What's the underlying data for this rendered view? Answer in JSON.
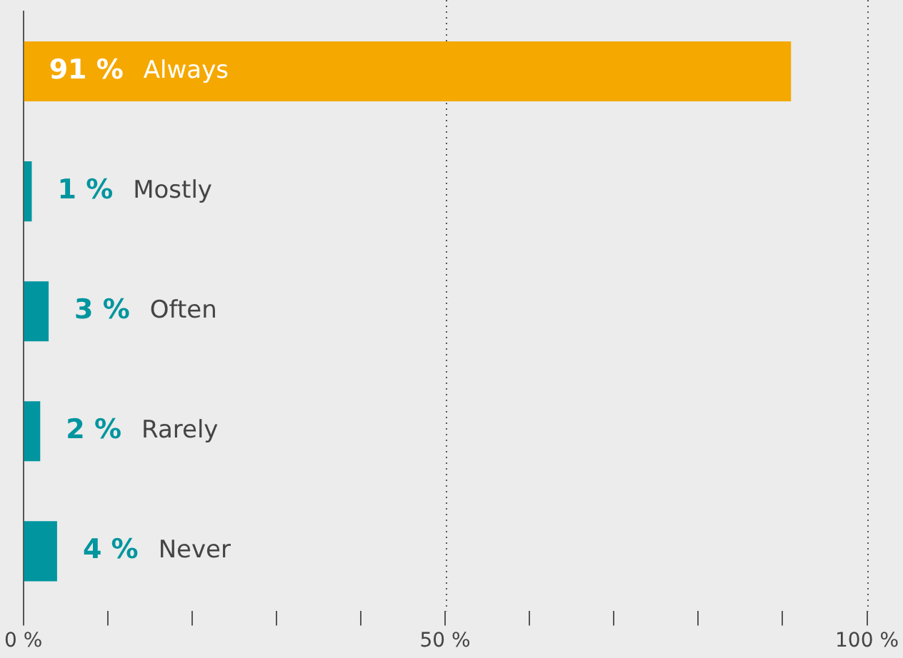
{
  "chart_data": {
    "type": "bar",
    "orientation": "horizontal",
    "categories": [
      "Always",
      "Mostly",
      "Often",
      "Rarely",
      "Never"
    ],
    "values": [
      91,
      1,
      3,
      2,
      4
    ],
    "colors": [
      "#f5a800",
      "#00959f",
      "#00959f",
      "#00959f",
      "#00959f"
    ],
    "value_labels": [
      "91 %",
      "1 %",
      "3 %",
      "2 %",
      "4 %"
    ],
    "xlim": [
      0,
      100
    ],
    "xticks": [
      {
        "value": 0,
        "label": "0 %"
      },
      {
        "value": 10,
        "label": null
      },
      {
        "value": 20,
        "label": null
      },
      {
        "value": 30,
        "label": null
      },
      {
        "value": 40,
        "label": null
      },
      {
        "value": 50,
        "label": "50 %"
      },
      {
        "value": 60,
        "label": null
      },
      {
        "value": 70,
        "label": null
      },
      {
        "value": 80,
        "label": null
      },
      {
        "value": 90,
        "label": null
      },
      {
        "value": 100,
        "label": "100 %"
      }
    ],
    "grid": "x",
    "legend": false
  }
}
